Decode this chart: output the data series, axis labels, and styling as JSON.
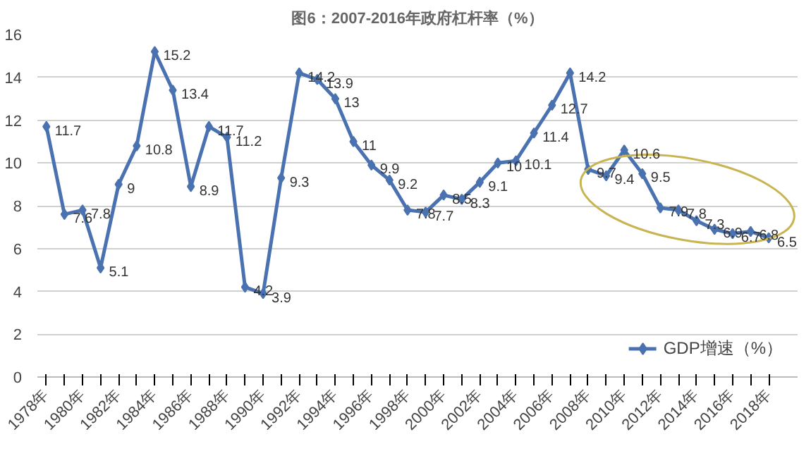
{
  "chart_data": {
    "type": "line",
    "title": "图6：2007-2016年政府杠杆率（%）",
    "categories": [
      "1978年",
      null,
      "1980年",
      null,
      "1982年",
      null,
      "1984年",
      null,
      "1986年",
      null,
      "1988年",
      null,
      "1990年",
      null,
      "1992年",
      null,
      "1994年",
      null,
      "1996年",
      null,
      "1998年",
      null,
      "2000年",
      null,
      "2002年",
      null,
      "2004年",
      null,
      "2006年",
      null,
      "2008年",
      null,
      "2010年",
      null,
      "2012年",
      null,
      "2014年",
      null,
      "2016年",
      null,
      "2018年"
    ],
    "series": [
      {
        "name": "GDP增速（%）",
        "color": "#4a72b0",
        "values": [
          11.7,
          7.6,
          7.8,
          5.1,
          9,
          10.8,
          15.2,
          13.4,
          8.9,
          11.7,
          11.2,
          4.2,
          3.9,
          9.3,
          14.2,
          13.9,
          13,
          11,
          9.9,
          9.2,
          7.8,
          7.7,
          8.5,
          8.3,
          9.1,
          10,
          10.1,
          11.4,
          12.7,
          14.2,
          9.7,
          9.4,
          10.6,
          9.5,
          7.9,
          7.8,
          7.3,
          6.9,
          6.7,
          6.8,
          6.5
        ]
      }
    ],
    "ylim": [
      0,
      16
    ],
    "yticks": [
      0,
      2,
      4,
      6,
      8,
      10,
      12,
      14,
      16
    ],
    "grid": "y",
    "legend": "bottom right",
    "marker": "diamond",
    "line_style": "solid",
    "data_labels": true
  }
}
